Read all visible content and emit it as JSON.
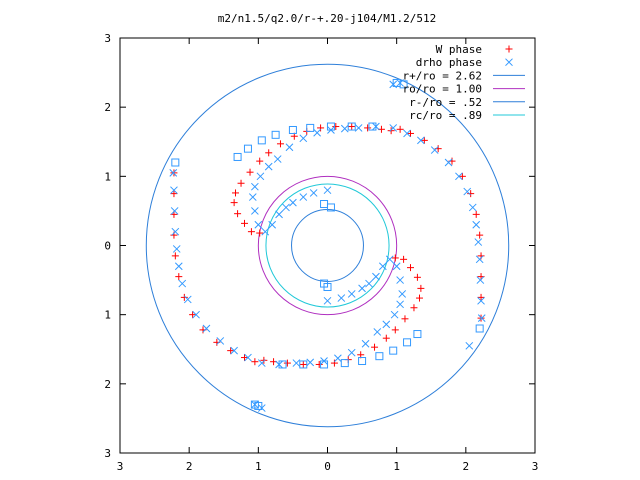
{
  "chart_data": {
    "type": "scatter",
    "title": "m2/n1.5/q2.0/r-+.20-j104/M1.2/512",
    "xlabel": "",
    "ylabel": "",
    "xlim": [
      -3,
      3
    ],
    "ylim": [
      -3,
      3
    ],
    "x_ticks": [
      -3,
      -2,
      -1,
      0,
      1,
      2,
      3
    ],
    "y_ticks": [
      -3,
      -2,
      -1,
      0,
      1,
      2,
      3
    ],
    "x_tick_labels": [
      "3",
      "2",
      "1",
      "0",
      "1",
      "2",
      "3"
    ],
    "y_tick_labels": [
      "3",
      "2",
      "1",
      "0",
      "1",
      "2",
      "3"
    ],
    "grid": false,
    "legend_position": "top-right",
    "series": [
      {
        "name": "W phase",
        "marker": "plus",
        "color": "#ff0000",
        "points": [
          [
            -0.98,
            0.18
          ],
          [
            -1.1,
            0.2
          ],
          [
            -1.2,
            0.32
          ],
          [
            -1.3,
            0.46
          ],
          [
            -1.35,
            0.62
          ],
          [
            -1.33,
            0.76
          ],
          [
            -1.25,
            0.9
          ],
          [
            -1.12,
            1.06
          ],
          [
            -0.98,
            1.22
          ],
          [
            -0.85,
            1.34
          ],
          [
            -0.68,
            1.47
          ],
          [
            -0.48,
            1.58
          ],
          [
            -0.3,
            1.65
          ],
          [
            -0.1,
            1.7
          ],
          [
            0.12,
            1.72
          ],
          [
            0.35,
            1.72
          ],
          [
            0.58,
            1.7
          ],
          [
            0.78,
            1.68
          ],
          [
            0.92,
            1.66
          ],
          [
            1.05,
            1.68
          ],
          [
            1.2,
            1.62
          ],
          [
            1.4,
            1.52
          ],
          [
            1.6,
            1.4
          ],
          [
            1.8,
            1.22
          ],
          [
            1.95,
            1.0
          ],
          [
            2.07,
            0.75
          ],
          [
            2.15,
            0.45
          ],
          [
            2.2,
            0.15
          ],
          [
            2.22,
            -0.15
          ],
          [
            2.22,
            -0.45
          ],
          [
            2.22,
            -0.75
          ],
          [
            2.22,
            -1.05
          ],
          [
            0.98,
            -0.18
          ],
          [
            1.1,
            -0.2
          ],
          [
            1.2,
            -0.32
          ],
          [
            1.3,
            -0.46
          ],
          [
            1.35,
            -0.62
          ],
          [
            1.33,
            -0.76
          ],
          [
            1.25,
            -0.9
          ],
          [
            1.12,
            -1.06
          ],
          [
            0.98,
            -1.22
          ],
          [
            0.85,
            -1.34
          ],
          [
            0.68,
            -1.47
          ],
          [
            0.48,
            -1.58
          ],
          [
            0.3,
            -1.65
          ],
          [
            0.1,
            -1.7
          ],
          [
            -0.12,
            -1.72
          ],
          [
            -0.35,
            -1.72
          ],
          [
            -0.58,
            -1.7
          ],
          [
            -0.78,
            -1.68
          ],
          [
            -0.92,
            -1.66
          ],
          [
            -1.05,
            -1.68
          ],
          [
            -1.2,
            -1.62
          ],
          [
            -1.4,
            -1.52
          ],
          [
            -1.6,
            -1.4
          ],
          [
            -1.8,
            -1.22
          ],
          [
            -1.95,
            -1.0
          ],
          [
            -2.07,
            -0.75
          ],
          [
            -2.15,
            -0.45
          ],
          [
            -2.2,
            -0.15
          ],
          [
            -2.22,
            0.15
          ],
          [
            -2.22,
            0.45
          ],
          [
            -2.22,
            0.75
          ],
          [
            -2.22,
            1.05
          ]
        ]
      },
      {
        "name": "drho phase",
        "marker": "cross",
        "color": "#3399ff",
        "points": [
          [
            -0.9,
            0.2
          ],
          [
            -0.8,
            0.3
          ],
          [
            -0.7,
            0.45
          ],
          [
            -0.6,
            0.55
          ],
          [
            -0.5,
            0.62
          ],
          [
            -0.35,
            0.7
          ],
          [
            -0.2,
            0.76
          ],
          [
            0.0,
            0.8
          ],
          [
            -1.0,
            0.3
          ],
          [
            -1.05,
            0.5
          ],
          [
            -1.08,
            0.7
          ],
          [
            -1.05,
            0.85
          ],
          [
            -0.97,
            1.0
          ],
          [
            -0.85,
            1.14
          ],
          [
            -0.72,
            1.25
          ],
          [
            -0.55,
            1.42
          ],
          [
            -0.35,
            1.55
          ],
          [
            -0.15,
            1.63
          ],
          [
            0.05,
            1.67
          ],
          [
            0.25,
            1.69
          ],
          [
            0.45,
            1.7
          ],
          [
            0.7,
            1.72
          ],
          [
            0.95,
            1.7
          ],
          [
            1.15,
            1.62
          ],
          [
            1.35,
            1.52
          ],
          [
            1.55,
            1.38
          ],
          [
            1.75,
            1.2
          ],
          [
            1.9,
            1.0
          ],
          [
            2.02,
            0.78
          ],
          [
            2.1,
            0.55
          ],
          [
            2.15,
            0.3
          ],
          [
            2.18,
            0.05
          ],
          [
            2.2,
            -0.2
          ],
          [
            2.21,
            -0.5
          ],
          [
            2.22,
            -0.8
          ],
          [
            2.23,
            -1.05
          ],
          [
            2.05,
            -1.45
          ],
          [
            0.9,
            -0.2
          ],
          [
            0.8,
            -0.3
          ],
          [
            0.7,
            -0.45
          ],
          [
            0.6,
            -0.55
          ],
          [
            0.5,
            -0.62
          ],
          [
            0.35,
            -0.7
          ],
          [
            0.2,
            -0.76
          ],
          [
            0.0,
            -0.8
          ],
          [
            1.0,
            -0.3
          ],
          [
            1.05,
            -0.5
          ],
          [
            1.08,
            -0.7
          ],
          [
            1.05,
            -0.85
          ],
          [
            0.97,
            -1.0
          ],
          [
            0.85,
            -1.14
          ],
          [
            0.72,
            -1.25
          ],
          [
            0.55,
            -1.42
          ],
          [
            0.35,
            -1.55
          ],
          [
            0.15,
            -1.63
          ],
          [
            -0.05,
            -1.67
          ],
          [
            -0.25,
            -1.69
          ],
          [
            -0.45,
            -1.7
          ],
          [
            -0.7,
            -1.72
          ],
          [
            -0.95,
            -1.7
          ],
          [
            -1.15,
            -1.62
          ],
          [
            -1.35,
            -1.52
          ],
          [
            -1.55,
            -1.38
          ],
          [
            -1.75,
            -1.2
          ],
          [
            -1.9,
            -1.0
          ],
          [
            -2.02,
            -0.78
          ],
          [
            -2.1,
            -0.55
          ],
          [
            -2.15,
            -0.3
          ],
          [
            -2.18,
            -0.05
          ],
          [
            -2.2,
            0.2
          ],
          [
            -2.21,
            0.5
          ],
          [
            -2.22,
            0.8
          ],
          [
            -2.23,
            1.05
          ],
          [
            -1.05,
            -2.3
          ],
          [
            -0.95,
            -2.35
          ],
          [
            1.05,
            2.35
          ],
          [
            0.95,
            2.33
          ]
        ]
      },
      {
        "name": "",
        "marker": "square",
        "color": "#3399ff",
        "points": [
          [
            -2.2,
            1.2
          ],
          [
            -1.3,
            1.28
          ],
          [
            -1.15,
            1.4
          ],
          [
            -0.95,
            1.52
          ],
          [
            -0.75,
            1.6
          ],
          [
            -0.5,
            1.67
          ],
          [
            -0.25,
            1.7
          ],
          [
            0.05,
            1.72
          ],
          [
            0.35,
            1.72
          ],
          [
            0.65,
            1.72
          ],
          [
            1.0,
            2.35
          ],
          [
            1.1,
            2.33
          ],
          [
            2.2,
            -1.2
          ],
          [
            1.3,
            -1.28
          ],
          [
            1.15,
            -1.4
          ],
          [
            0.95,
            -1.52
          ],
          [
            0.75,
            -1.6
          ],
          [
            0.5,
            -1.67
          ],
          [
            0.25,
            -1.7
          ],
          [
            -0.05,
            -1.72
          ],
          [
            -0.35,
            -1.72
          ],
          [
            -0.65,
            -1.72
          ],
          [
            -1.05,
            -2.3
          ],
          [
            -1.0,
            -2.32
          ],
          [
            -0.05,
            0.6
          ],
          [
            0.05,
            0.55
          ],
          [
            0.0,
            -0.6
          ],
          [
            -0.05,
            -0.55
          ]
        ]
      }
    ],
    "circles": [
      {
        "name": "r+/ro = 2.62",
        "radius": 2.62,
        "color": "#2e7fd9"
      },
      {
        "name": "ro/ro = 1.00",
        "radius": 1.0,
        "color": "#b030c0"
      },
      {
        "name": "r-/ro = .52",
        "radius": 0.52,
        "color": "#2e7fd9"
      },
      {
        "name": "rc/ro = .89",
        "radius": 0.89,
        "color": "#20c8d8"
      }
    ]
  }
}
